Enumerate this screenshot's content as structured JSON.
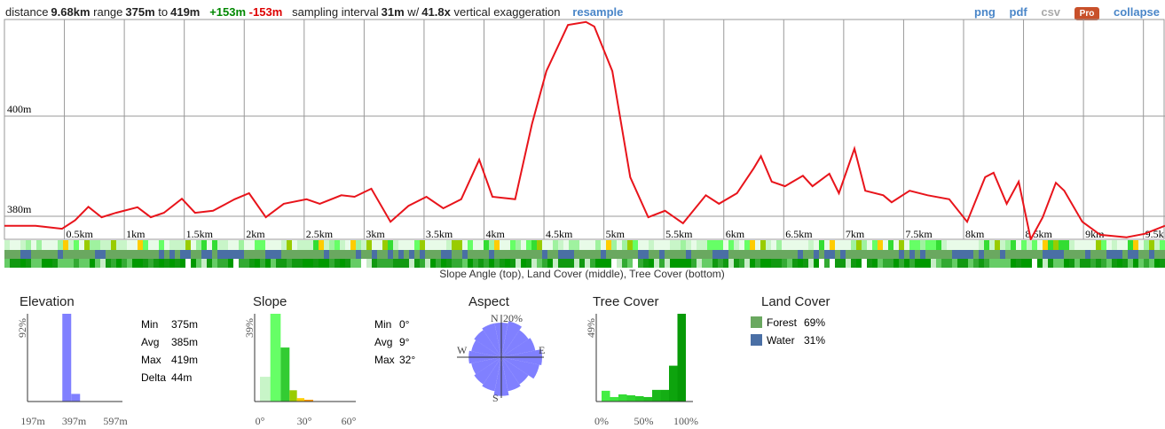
{
  "header": {
    "distance_label": "distance",
    "distance": "9.68km",
    "range_label": "range",
    "range_min": "375m",
    "to": "to",
    "range_max": "419m",
    "gain": "+153m",
    "loss": "-153m",
    "interval_label": "sampling interval",
    "interval": "31m",
    "w": "w/",
    "exaggeration": "41.8x",
    "exaggeration_label": "vertical exaggeration",
    "resample": "resample"
  },
  "toolbar": [
    "png",
    "pdf",
    "csv",
    "Pro",
    "collapse"
  ],
  "profile": {
    "type": "line",
    "color": "#e8141b",
    "grid": true,
    "xlim": [
      0,
      9.68
    ],
    "ylim": [
      375.4,
      419.3
    ],
    "yticks": [
      {
        "value": 380,
        "label": "380m"
      },
      {
        "value": 400,
        "label": "400m"
      }
    ],
    "xticks": [
      {
        "value": 0.5,
        "label": "0.5km"
      },
      {
        "value": 1,
        "label": "1km"
      },
      {
        "value": 1.5,
        "label": "1.5km"
      },
      {
        "value": 2,
        "label": "2km"
      },
      {
        "value": 2.5,
        "label": "2.5km"
      },
      {
        "value": 3,
        "label": "3km"
      },
      {
        "value": 3.5,
        "label": "3.5km"
      },
      {
        "value": 4,
        "label": "4km"
      },
      {
        "value": 4.5,
        "label": "4.5km"
      },
      {
        "value": 5,
        "label": "5km"
      },
      {
        "value": 5.5,
        "label": "5.5km"
      },
      {
        "value": 6,
        "label": "6km"
      },
      {
        "value": 6.5,
        "label": "6.5km"
      },
      {
        "value": 7,
        "label": "7km"
      },
      {
        "value": 7.5,
        "label": "7.5km"
      },
      {
        "value": 8,
        "label": "8km"
      },
      {
        "value": 8.5,
        "label": "8.5km"
      },
      {
        "value": 9,
        "label": "9km"
      },
      {
        "value": 9.5,
        "label": "9.5k"
      }
    ],
    "x": [
      0,
      0.26,
      0.48,
      0.59,
      0.7,
      0.81,
      0.93,
      1.11,
      1.22,
      1.33,
      1.48,
      1.59,
      1.74,
      1.92,
      2.04,
      2.18,
      2.33,
      2.52,
      2.63,
      2.81,
      2.92,
      3.06,
      3.22,
      3.37,
      3.52,
      3.66,
      3.81,
      3.96,
      4.07,
      4.26,
      4.4,
      4.52,
      4.7,
      4.85,
      4.92,
      5.07,
      5.22,
      5.37,
      5.51,
      5.66,
      5.85,
      5.96,
      6.11,
      6.25,
      6.31,
      6.4,
      6.51,
      6.66,
      6.74,
      6.88,
      6.96,
      7.09,
      7.18,
      7.33,
      7.4,
      7.55,
      7.7,
      7.88,
      8.03,
      8.18,
      8.25,
      8.36,
      8.46,
      8.56,
      8.66,
      8.77,
      8.84,
      8.99,
      9.14,
      9.36,
      9.51,
      9.68
    ],
    "values": [
      378.1,
      378.1,
      377.5,
      379.2,
      381.9,
      379.8,
      380.7,
      381.8,
      379.8,
      380.7,
      383.5,
      380.7,
      381.1,
      383.4,
      384.6,
      379.8,
      382.5,
      383.4,
      382.5,
      384.2,
      383.9,
      385.5,
      378.9,
      382.1,
      383.9,
      381.6,
      383.4,
      391.3,
      383.9,
      383.4,
      398.4,
      409.0,
      418.2,
      418.8,
      417.9,
      409.0,
      387.8,
      379.8,
      381.1,
      378.6,
      384.2,
      382.5,
      384.6,
      389.6,
      392.0,
      386.9,
      386.0,
      388.1,
      386.0,
      388.5,
      384.6,
      393.5,
      385.1,
      384.2,
      382.8,
      385.1,
      384.2,
      383.4,
      378.9,
      387.8,
      388.7,
      382.5,
      386.9,
      375.4,
      379.8,
      386.7,
      385.1,
      378.9,
      376.3,
      375.8,
      376.5,
      378.1
    ]
  },
  "strip_caption": "Slope Angle (top), Land Cover (middle), Tree Cover (bottom)",
  "elevation": {
    "title": "Elevation",
    "ymax": {
      "value": 92,
      "label": "92%"
    },
    "color": "#8080ff",
    "xticks": [
      {
        "value": 197,
        "label": "197m"
      },
      {
        "value": 397,
        "label": "397m"
      },
      {
        "value": 597,
        "label": "597m"
      }
    ],
    "bins": [
      340,
      383,
      426
    ],
    "values": [
      92,
      8
    ],
    "stats": [
      [
        "Min",
        "375m"
      ],
      [
        "Avg",
        "385m"
      ],
      [
        "Max",
        "419m"
      ],
      [
        "Delta",
        "44m"
      ]
    ]
  },
  "slope": {
    "title": "Slope",
    "ymax": {
      "value": 39,
      "label": "39%"
    },
    "xticks": [
      {
        "value": 0,
        "label": "0°"
      },
      {
        "value": 30,
        "label": "30°"
      },
      {
        "value": 60,
        "label": "60°"
      }
    ],
    "bins": [
      0,
      7,
      14,
      20,
      25,
      30,
      36
    ],
    "values": [
      11,
      39,
      24,
      5,
      1.5,
      0.8
    ],
    "colors": [
      "#c8f5c8",
      "#66ff66",
      "#33cc33",
      "#99cc00",
      "#ffcc00",
      "#ff9900"
    ],
    "stats": [
      [
        "Min",
        "0°"
      ],
      [
        "Avg",
        "9°"
      ],
      [
        "Max",
        "32°"
      ]
    ]
  },
  "aspect": {
    "title": "Aspect",
    "color": "#8080ff",
    "ring": {
      "value": 20,
      "label": "20%"
    },
    "directions": [
      "N",
      "E",
      "S",
      "W"
    ],
    "values": [
      17,
      18,
      16,
      17,
      20,
      19,
      16,
      17,
      19,
      17,
      16,
      15,
      16,
      15,
      16,
      17
    ]
  },
  "tree_cover": {
    "title": "Tree Cover",
    "ymax": {
      "value": 49,
      "label": "49%"
    },
    "xticks": [
      {
        "value": 0,
        "label": "0%"
      },
      {
        "value": 50,
        "label": "50%"
      },
      {
        "value": 100,
        "label": "100%"
      }
    ],
    "bins": [
      0,
      10,
      20,
      30,
      40,
      50,
      60,
      70,
      80,
      90,
      100
    ],
    "values": [
      6,
      2.5,
      4,
      3.5,
      3,
      2.5,
      6.5,
      6.5,
      20,
      49
    ],
    "colors": [
      "#44ee44",
      "#3de63d",
      "#36dd36",
      "#2fd42f",
      "#28cb28",
      "#22c222",
      "#1bb81b",
      "#14ae14",
      "#0da40d",
      "#079a07"
    ]
  },
  "land_cover": {
    "title": "Land Cover",
    "items": [
      {
        "name": "Forest",
        "value": "69%",
        "color": "#6aa860"
      },
      {
        "name": "Water",
        "value": "31%",
        "color": "#4a6fa5"
      }
    ]
  }
}
